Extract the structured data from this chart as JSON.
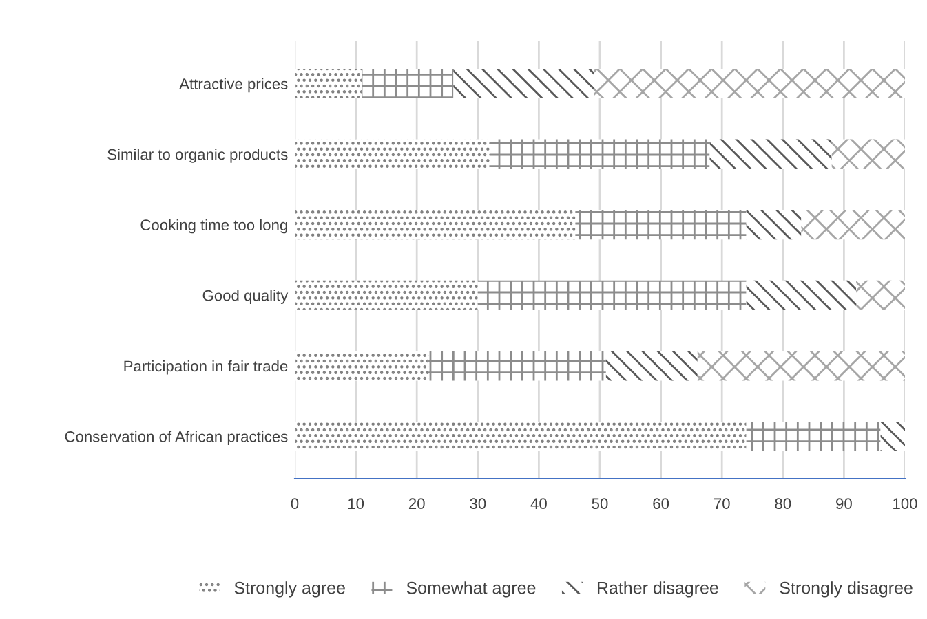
{
  "chart_data": {
    "type": "bar",
    "orientation": "horizontal",
    "stacked": true,
    "categories": [
      "Attractive prices",
      "Similar to organic products",
      "Cooking time too long",
      "Good quality",
      "Participation in fair trade",
      "Conservation of African practices"
    ],
    "series": [
      {
        "name": "Strongly agree",
        "color": "#7f7f7f",
        "values": [
          11,
          32,
          46,
          30,
          22,
          74
        ]
      },
      {
        "name": "Somewhat agree",
        "color": "#8c8c8c",
        "values": [
          15,
          36,
          28,
          44,
          29,
          22
        ]
      },
      {
        "name": "Rather disagree",
        "color": "#595959",
        "values": [
          23,
          20,
          9,
          18,
          15,
          4
        ]
      },
      {
        "name": "Strongly disagree",
        "color": "#a6a6a6",
        "values": [
          51,
          12,
          17,
          8,
          34,
          0
        ]
      }
    ],
    "xlim": [
      0,
      100
    ],
    "xticks": [
      0,
      10,
      20,
      30,
      40,
      50,
      60,
      70,
      80,
      90,
      100
    ],
    "grid": "x",
    "legend": "bottom"
  }
}
